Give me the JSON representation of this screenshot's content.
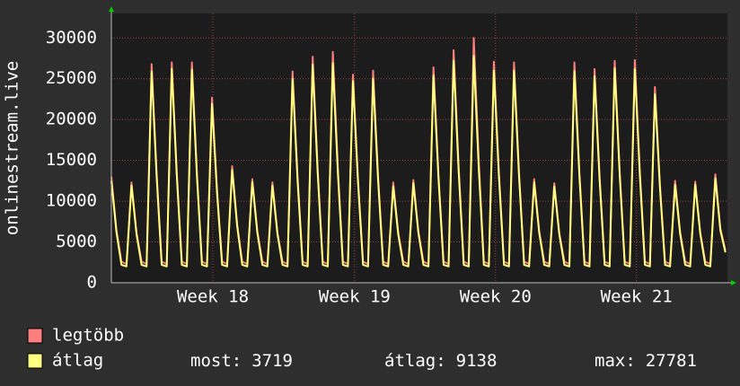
{
  "chart_data": {
    "type": "line",
    "y_label": "onlinestream.live",
    "xlim": [
      0,
      30.6
    ],
    "xticks": [
      {
        "value": 5.04,
        "label": "Week 18"
      },
      {
        "value": 12.08,
        "label": "Week 19"
      },
      {
        "value": 19.08,
        "label": "Week 20"
      },
      {
        "value": 26.08,
        "label": "Week 21"
      }
    ],
    "ylim": [
      0,
      33000
    ],
    "yticks": [
      0,
      5000,
      10000,
      15000,
      20000,
      25000,
      30000
    ],
    "grid": true,
    "x": [
      0,
      0.25,
      0.5,
      0.75,
      1,
      1.25,
      1.5,
      1.75,
      2,
      2.25,
      2.5,
      2.75,
      3,
      3.25,
      3.5,
      3.75,
      4,
      4.25,
      4.5,
      4.75,
      5,
      5.25,
      5.5,
      5.75,
      6,
      6.25,
      6.5,
      6.75,
      7,
      7.25,
      7.5,
      7.75,
      8,
      8.25,
      8.5,
      8.75,
      9,
      9.25,
      9.5,
      9.75,
      10,
      10.25,
      10.5,
      10.75,
      11,
      11.25,
      11.5,
      11.75,
      12,
      12.25,
      12.5,
      12.75,
      13,
      13.25,
      13.5,
      13.75,
      14,
      14.25,
      14.5,
      14.75,
      15,
      15.25,
      15.5,
      15.75,
      16,
      16.25,
      16.5,
      16.75,
      17,
      17.25,
      17.5,
      17.75,
      18,
      18.25,
      18.5,
      18.75,
      19,
      19.25,
      19.5,
      19.75,
      20,
      20.25,
      20.5,
      20.75,
      21,
      21.25,
      21.5,
      21.75,
      22,
      22.25,
      22.5,
      22.75,
      23,
      23.25,
      23.5,
      23.75,
      24,
      24.25,
      24.5,
      24.75,
      25,
      25.25,
      25.5,
      25.75,
      26,
      26.25,
      26.5,
      26.75,
      27,
      27.25,
      27.5,
      27.75,
      28,
      28.25,
      28.5,
      28.75,
      29,
      29.25,
      29.5,
      29.75,
      30,
      30.25,
      30.5
    ],
    "series": [
      {
        "name": "legtöbb",
        "color": "#ff7f7f",
        "values": [
          13000,
          6500,
          2600,
          2300,
          12300,
          6150,
          2600,
          2300,
          26800,
          13400,
          2600,
          2300,
          27000,
          13500,
          2600,
          2300,
          27000,
          13500,
          2600,
          2300,
          22700,
          11350,
          2600,
          2300,
          14300,
          7150,
          2600,
          2300,
          12700,
          6350,
          2600,
          2300,
          12300,
          6150,
          2600,
          2300,
          25900,
          12950,
          2600,
          2300,
          27700,
          13850,
          2600,
          2300,
          28300,
          14150,
          2600,
          2300,
          25500,
          12750,
          2600,
          2300,
          26000,
          13000,
          2600,
          2300,
          12300,
          6150,
          2600,
          2300,
          12600,
          6300,
          2600,
          2300,
          26400,
          13200,
          2600,
          2300,
          28500,
          14250,
          2600,
          2300,
          30000,
          15000,
          2600,
          2300,
          27100,
          13550,
          2600,
          2300,
          27000,
          13500,
          2600,
          2300,
          12700,
          6350,
          2600,
          2300,
          12200,
          6100,
          2600,
          2300,
          27000,
          13500,
          2600,
          2300,
          26200,
          13100,
          2600,
          2300,
          27200,
          13600,
          2600,
          2300,
          27300,
          13650,
          2600,
          2300,
          24000,
          12000,
          2600,
          2300,
          12500,
          6250,
          2600,
          2300,
          12400,
          6200,
          2600,
          2300,
          13300,
          6650,
          4000
        ]
      },
      {
        "name": "átlag",
        "color": "#ffff80",
        "values": [
          12500,
          6250,
          2200,
          2000,
          11900,
          5950,
          2200,
          2000,
          25900,
          12950,
          2200,
          2000,
          26200,
          13100,
          2200,
          2000,
          26100,
          13050,
          2200,
          2000,
          21900,
          10950,
          2200,
          2000,
          13800,
          6900,
          2200,
          2000,
          12300,
          6150,
          2200,
          2000,
          11900,
          5950,
          2200,
          2000,
          25000,
          12500,
          2200,
          2000,
          26700,
          13350,
          2200,
          2000,
          26900,
          13450,
          2200,
          2000,
          24700,
          12350,
          2200,
          2000,
          25000,
          12500,
          2200,
          2000,
          11800,
          5900,
          2200,
          2000,
          12200,
          6100,
          2200,
          2000,
          25400,
          12700,
          2200,
          2000,
          27200,
          13600,
          2200,
          2000,
          27781,
          13890,
          2200,
          2000,
          26000,
          13000,
          2200,
          2000,
          26000,
          13000,
          2200,
          2000,
          12300,
          6150,
          2200,
          2000,
          11800,
          5900,
          2200,
          2000,
          25900,
          12950,
          2200,
          2000,
          25300,
          12650,
          2200,
          2000,
          26300,
          13150,
          2200,
          2000,
          26200,
          13100,
          2200,
          2000,
          23100,
          11550,
          2200,
          2000,
          12000,
          6000,
          2200,
          2000,
          12000,
          6000,
          2200,
          2000,
          12800,
          6400,
          3719
        ]
      }
    ],
    "stats": [
      {
        "label": "most:",
        "value": 3719
      },
      {
        "label": "átlag:",
        "value": 9138
      },
      {
        "label": "max:",
        "value": 27781
      }
    ]
  }
}
